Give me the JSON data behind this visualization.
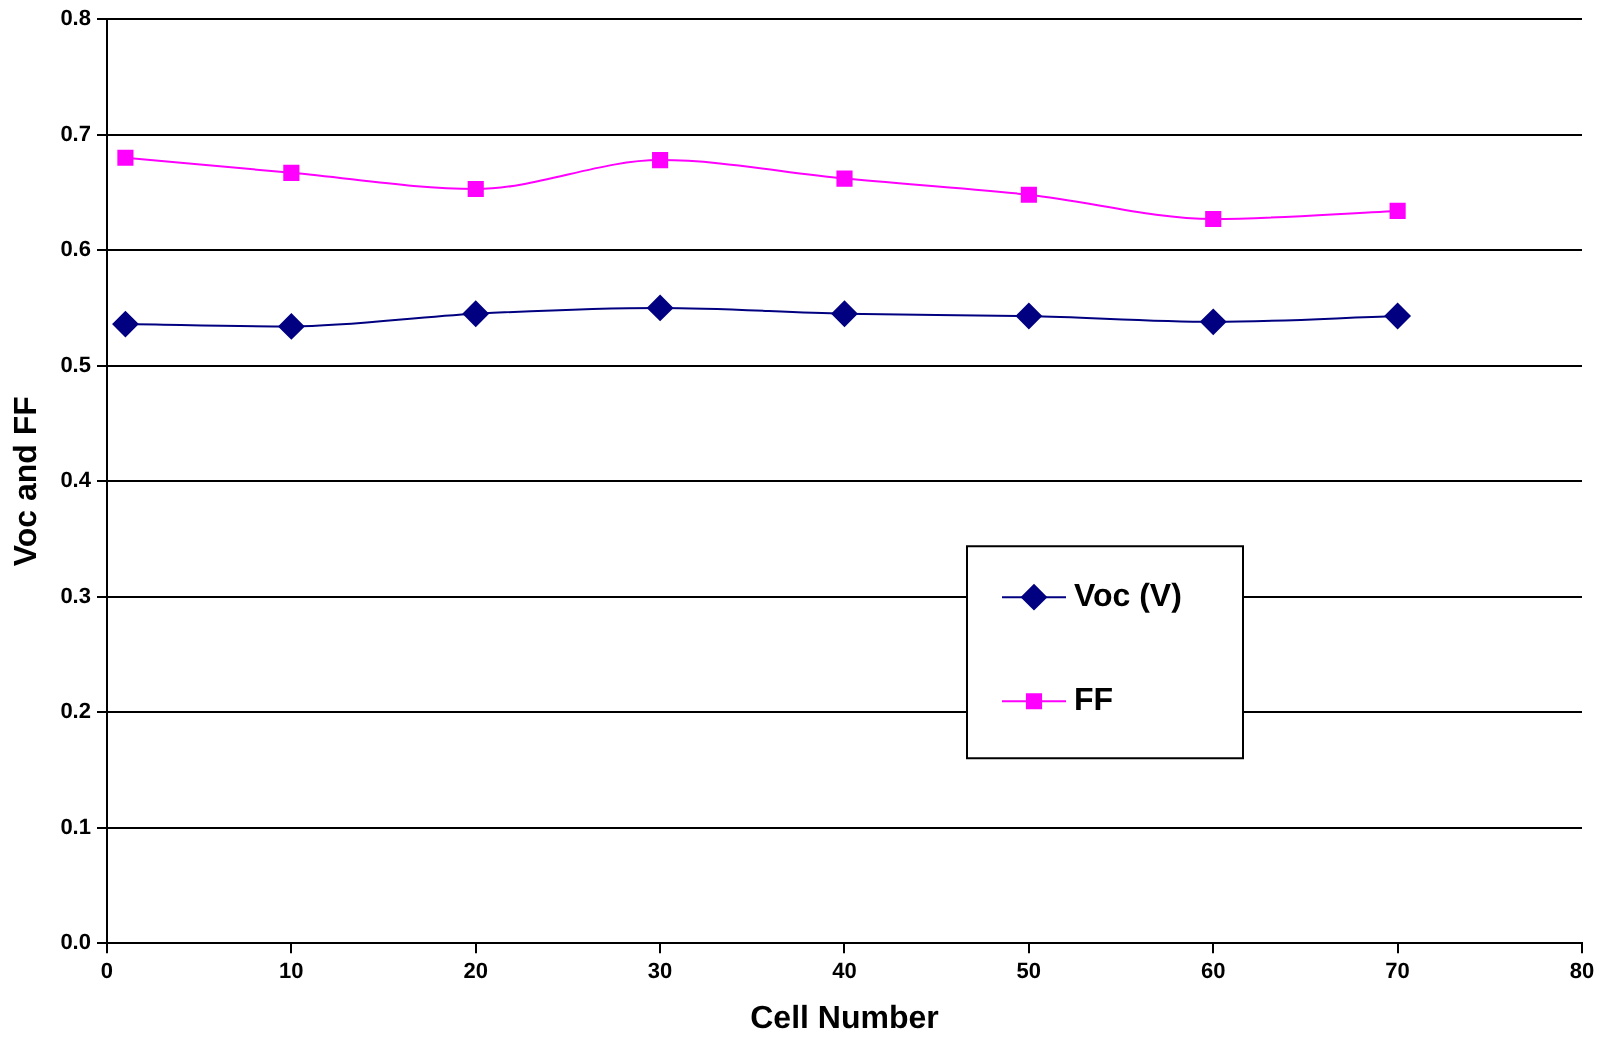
{
  "chart_data": {
    "type": "line",
    "xlabel": "Cell Number",
    "ylabel": "Voc and FF",
    "x": [
      1,
      10,
      20,
      30,
      40,
      50,
      60,
      70
    ],
    "series": [
      {
        "name": "Voc (V)",
        "color": "#000080",
        "marker": "diamond",
        "values": [
          0.536,
          0.534,
          0.545,
          0.55,
          0.545,
          0.543,
          0.538,
          0.543
        ]
      },
      {
        "name": "FF",
        "color": "#ff00ff",
        "marker": "square",
        "values": [
          0.68,
          0.667,
          0.653,
          0.678,
          0.662,
          0.648,
          0.627,
          0.634
        ]
      }
    ],
    "xlim": [
      0,
      80
    ],
    "xticks": [
      0,
      10,
      20,
      30,
      40,
      50,
      60,
      70,
      80
    ],
    "ylim": [
      0,
      0.8
    ],
    "yticks": [
      {
        "value": 0,
        "label": "0.0"
      },
      {
        "value": 0.1,
        "label": "0.1"
      },
      {
        "value": 0.2,
        "label": "0.2"
      },
      {
        "value": 0.3,
        "label": "0.3"
      },
      {
        "value": 0.4,
        "label": "0.4"
      },
      {
        "value": 0.5,
        "label": "0.5"
      },
      {
        "value": 0.6,
        "label": "0.6"
      },
      {
        "value": 0.7,
        "label": "0.7"
      },
      {
        "value": 0.8,
        "label": "0.8"
      }
    ],
    "grid": "y",
    "legend": "right",
    "line_style": "solid"
  }
}
